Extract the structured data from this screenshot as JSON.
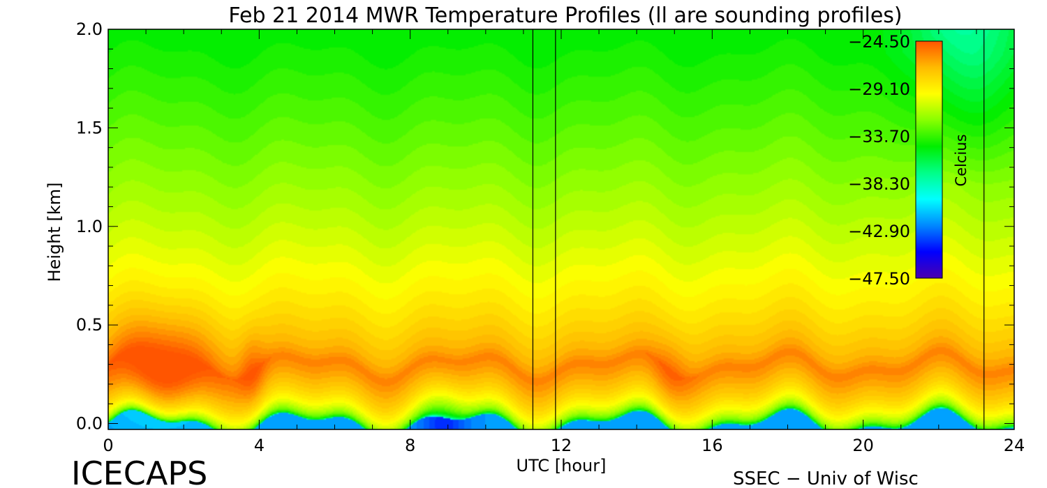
{
  "chart_data": {
    "type": "heatmap",
    "title": "Feb 21 2014 MWR Temperature Profiles (ll are sounding profiles)",
    "xlabel": "UTC [hour]",
    "ylabel": "Height [km]",
    "xlim": [
      0,
      24
    ],
    "ylim": [
      -0.03,
      2.0
    ],
    "x_ticks": [
      0,
      4,
      8,
      12,
      16,
      20,
      24
    ],
    "x_tick_labels": [
      "0",
      "4",
      "8",
      "12",
      "16",
      "20",
      "24"
    ],
    "y_ticks": [
      0.0,
      0.5,
      1.0,
      1.5,
      2.0
    ],
    "y_tick_labels": [
      "0.0",
      "0.5",
      "1.0",
      "1.5",
      "2.0"
    ],
    "colorbar": {
      "label": "Celcius",
      "range": [
        -47.5,
        -24.5
      ],
      "tick_values": [
        -24.5,
        -29.1,
        -33.7,
        -38.3,
        -42.9,
        -47.5
      ],
      "tick_labels": [
        "−24.50",
        "−29.10",
        "−33.70",
        "−38.30",
        "−42.90",
        "−47.50"
      ],
      "colors": [
        "#4a00b0",
        "#0000ff",
        "#0088ff",
        "#00ffff",
        "#00ff88",
        "#00ee00",
        "#88ff00",
        "#ffff00",
        "#ffbb00",
        "#ff5500"
      ]
    },
    "sounding_profile_hours": [
      11.25,
      11.85,
      23.2
    ],
    "temperature_field_description_values": {
      "surface_min": -42.0,
      "warm_layer_core": -25.5,
      "top_level": -34.5
    }
  },
  "annotations": {
    "project_label": "ICECAPS",
    "credit_label": "SSEC − Univ of Wisc"
  }
}
